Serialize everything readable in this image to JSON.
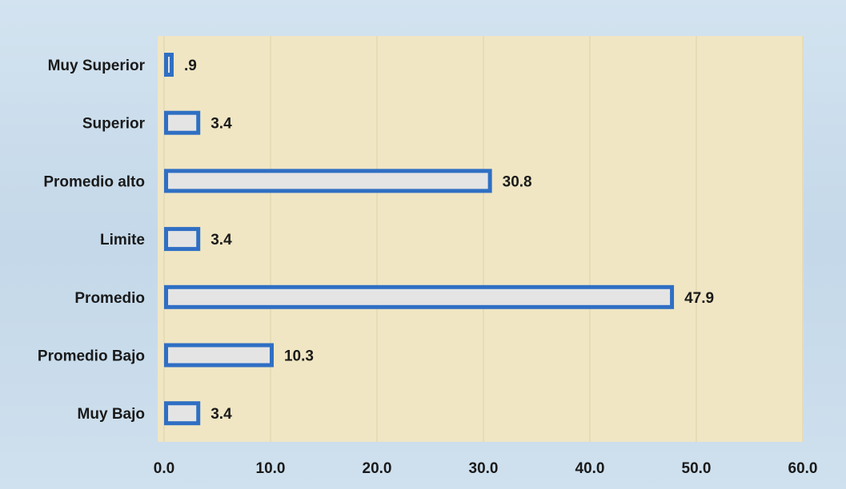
{
  "chart_data": {
    "type": "bar",
    "orientation": "horizontal",
    "categories": [
      "Muy Superior",
      "Superior",
      "Promedio alto",
      "Limite",
      "Promedio",
      "Promedio Bajo",
      "Muy Bajo"
    ],
    "values": [
      0.9,
      3.4,
      30.8,
      3.4,
      47.9,
      10.3,
      3.4
    ],
    "value_labels": [
      ".9",
      "3.4",
      "30.8",
      "3.4",
      "47.9",
      "10.3",
      "3.4"
    ],
    "xticks": [
      "0.0",
      "10.0",
      "20.0",
      "30.0",
      "40.0",
      "50.0",
      "60.0"
    ],
    "xlim": [
      0,
      60
    ],
    "grid": true,
    "legend": "none",
    "colors": {
      "bar_fill": "#e4e4e4",
      "bar_stroke": "#2f6fc4",
      "plot_background": "#f0e6c3",
      "gridline": "#e6dcb6",
      "page_background": "#c9dceb"
    }
  }
}
